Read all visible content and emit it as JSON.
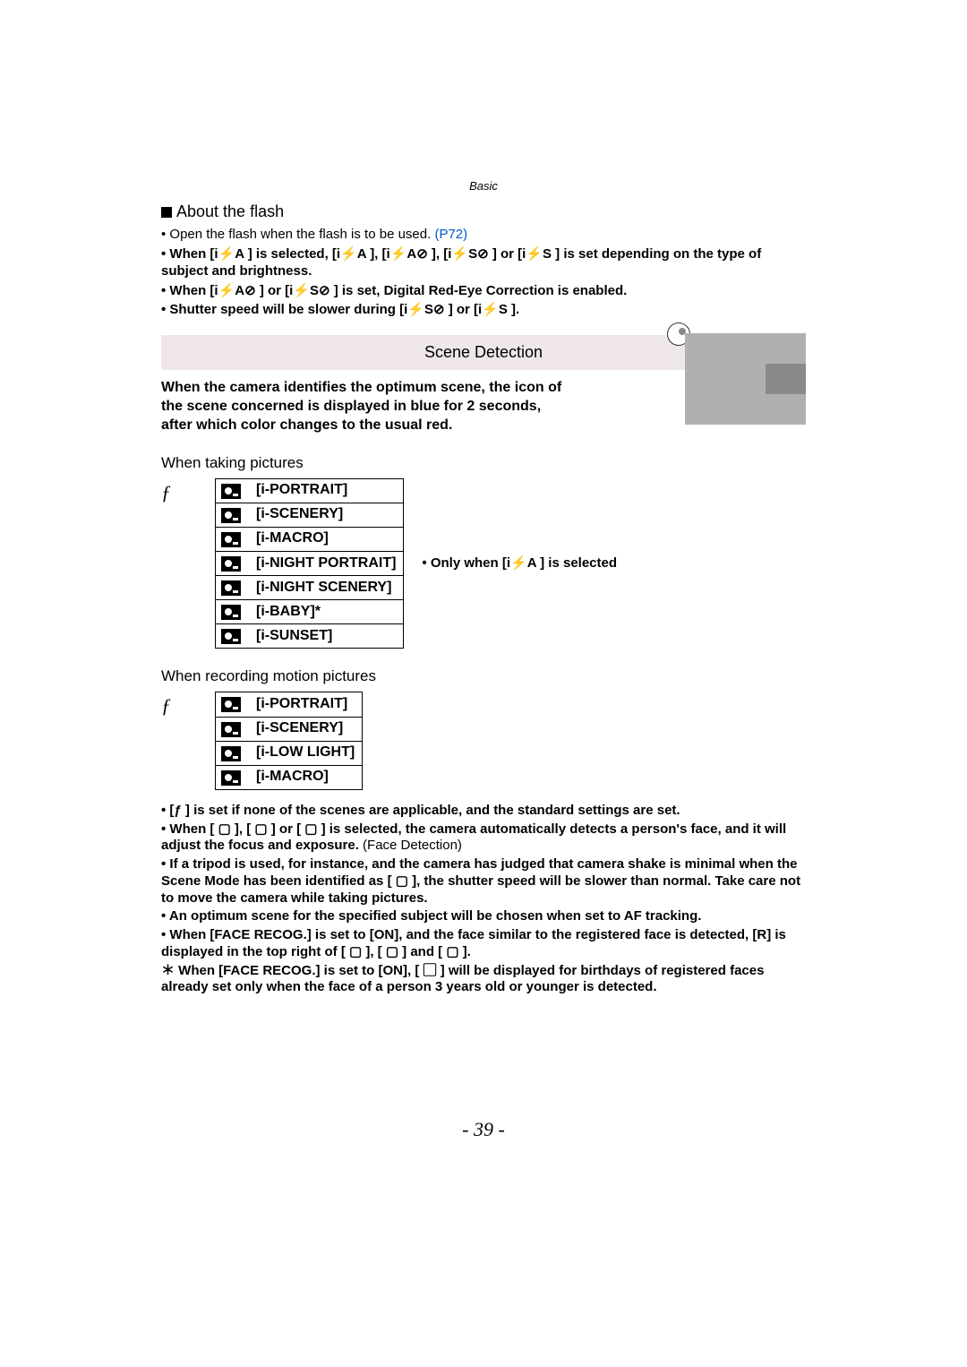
{
  "header": "Basic",
  "flash": {
    "title": "About the flash",
    "open": "• Open the flash when the flash is to be used.",
    "link": "(P72)",
    "when1": "• When [i⚡A ] is selected, [i⚡A  ], [i⚡A⊘ ], [i⚡S⊘ ] or [i⚡S ] is set depending on the type of subject and brightness.",
    "when2": "• When [i⚡A⊘ ] or [i⚡S⊘ ] is set, Digital Red-Eye Correction is enabled.",
    "when3": "• Shutter speed will be slower during [i⚡S⊘  ] or [i⚡S   ]."
  },
  "scene": {
    "band": "Scene Detection",
    "intro": "When the camera identifies the optimum scene, the icon of the scene concerned is displayed in blue for 2 seconds, after which color changes to the usual red."
  },
  "pictures": {
    "head": "When taking pictures",
    "arrow": "ƒ",
    "rows": [
      "[i-PORTRAIT]",
      "[i-SCENERY]",
      "[i-MACRO]",
      "[i-NIGHT PORTRAIT]",
      "[i-NIGHT SCENERY]",
      "[i-BABY]*",
      "[i-SUNSET]"
    ],
    "sidenote": "• Only when [i⚡A ] is selected"
  },
  "motion": {
    "head": "When recording motion pictures",
    "arrow": "ƒ",
    "rows": [
      "[i-PORTRAIT]",
      "[i-SCENERY]",
      "[i-LOW LIGHT]",
      "[i-MACRO]"
    ]
  },
  "notes": {
    "n1": "• [ƒ ] is set if none of the scenes are applicable, and the standard settings are set.",
    "n2a": "• When [ ▢ ], [ ▢ ] or [ ▢ ] is selected, the camera automatically detects a person's face, and it will adjust the focus and exposure. ",
    "n2b": "(Face Detection)",
    "n3": "• If a tripod is used, for instance, and the camera has judged that camera shake is minimal when the Scene Mode has been identified as [ ▢ ], the shutter speed will be slower than normal. Take care not to move the camera while taking pictures.",
    "n4": "• An optimum scene for the specified subject will be chosen when set to AF tracking.",
    "n5": "• When [FACE RECOG.] is set to [ON], and the face similar to the registered face is detected, [R] is displayed in the top right of [ ▢ ], [ ▢ ] and [ ▢ ].",
    "n6": "＊ When [FACE RECOG.] is set to [ON], [ ▢ ] will be displayed for birthdays of registered faces already set only when the face of a person 3 years old or younger is detected."
  },
  "page": "- 39 -",
  "colors": {
    "band": "#efe7e7",
    "link": "#0055cc"
  }
}
